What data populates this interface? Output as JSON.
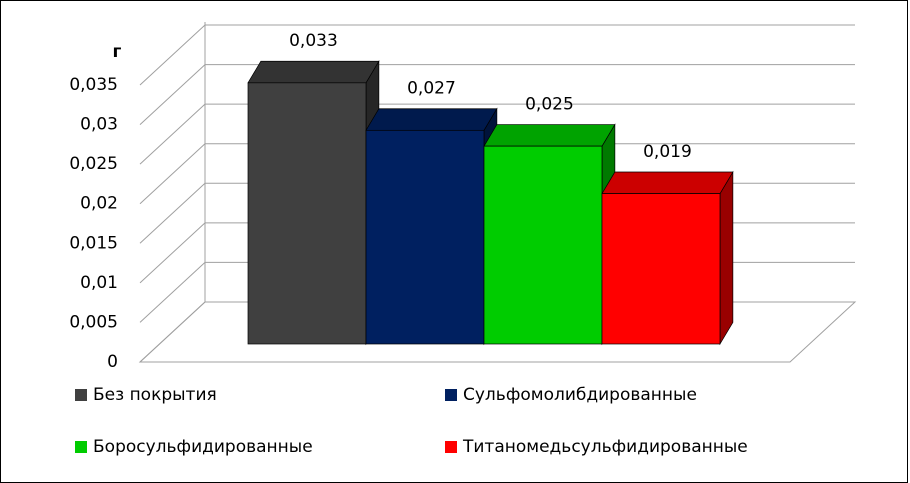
{
  "chart_data": {
    "type": "bar3d",
    "y_label": "г",
    "series": [
      {
        "name": "Без покрытия",
        "color": "#404040",
        "values": [
          0.033
        ],
        "value_labels": [
          "0,033"
        ]
      },
      {
        "name": "Сульфомолибдированные",
        "color": "#002060",
        "values": [
          0.027
        ],
        "value_labels": [
          "0,027"
        ]
      },
      {
        "name": "Боросульфидированные",
        "color": "#00cc00",
        "values": [
          0.025
        ],
        "value_labels": [
          "0,025"
        ]
      },
      {
        "name": "Титаномедьсульфидированные",
        "color": "#ff0000",
        "values": [
          0.019
        ],
        "value_labels": [
          "0,019"
        ]
      }
    ],
    "ylim": [
      0,
      0.035
    ],
    "yticks": [
      0,
      {
        "value": 0.005,
        "label": "0,005"
      },
      {
        "value": 0.01,
        "label": "0,01"
      },
      {
        "value": 0.015,
        "label": "0,015"
      },
      {
        "value": 0.02,
        "label": "0,02"
      },
      {
        "value": 0.025,
        "label": "0,025"
      },
      {
        "value": 0.03,
        "label": "0,03"
      },
      {
        "value": 0.035,
        "label": "0,035"
      }
    ],
    "grid": true
  }
}
